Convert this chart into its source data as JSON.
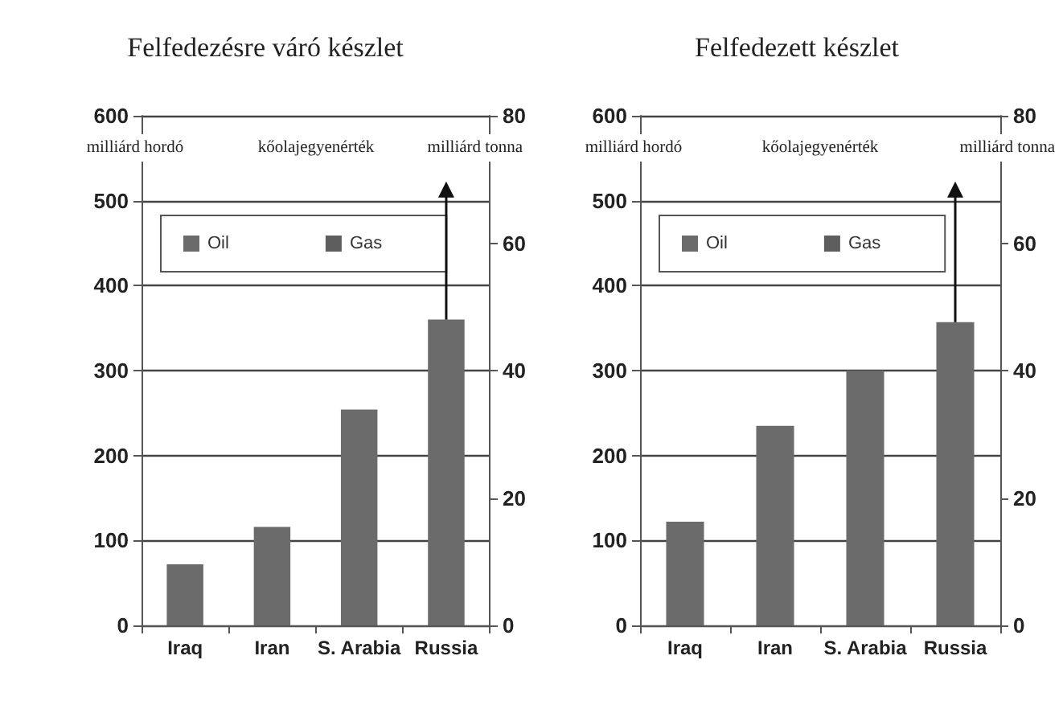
{
  "chart_data": [
    {
      "type": "bar",
      "title": "Felfedezésre váró készlet",
      "annotations": [
        "milliárd hordó",
        "kőolajegyenérték",
        "milliárd tonna"
      ],
      "categories": [
        "Iraq",
        "Iran",
        "S. Arabia",
        "Russia"
      ],
      "series": [
        {
          "name": "Oil",
          "color": "#6b6b6b",
          "values": [
            72,
            116,
            254,
            360
          ]
        },
        {
          "name": "Gas",
          "color": "#5e5e5e",
          "values": [
            null,
            null,
            null,
            null
          ]
        }
      ],
      "stacked": true,
      "ylim": [
        0,
        600
      ],
      "yticks": [
        0,
        100,
        200,
        300,
        400,
        500,
        600
      ],
      "y2lim": [
        0,
        80
      ],
      "y2ticks": [
        0,
        20,
        40,
        60,
        80
      ],
      "grid": "y",
      "legend": "top left"
    },
    {
      "type": "bar",
      "title": "Felfedezett készlet",
      "annotations": [
        "milliárd hordó",
        "kőolajegyenérték",
        "milliárd tonna"
      ],
      "categories": [
        "Iraq",
        "Iran",
        "S. Arabia",
        "Russia"
      ],
      "series": [
        {
          "name": "Oil",
          "color": "#6b6b6b",
          "values": [
            122,
            235,
            300,
            357
          ]
        },
        {
          "name": "Gas",
          "color": "#5e5e5e",
          "values": [
            null,
            null,
            null,
            null
          ]
        }
      ],
      "stacked": true,
      "ylim": [
        0,
        600
      ],
      "yticks": [
        0,
        100,
        200,
        300,
        400,
        500,
        600
      ],
      "y2lim": [
        0,
        80
      ],
      "y2ticks": [
        0,
        20,
        40,
        60,
        80
      ],
      "grid": "y",
      "legend": "top left"
    }
  ]
}
